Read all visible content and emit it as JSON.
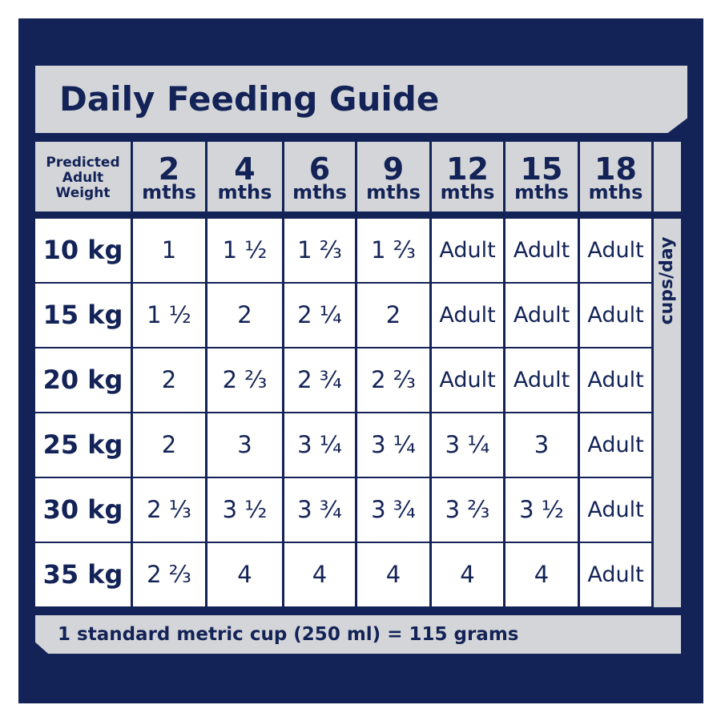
{
  "title": "Daily Feeding Guide",
  "header": {
    "predicted": [
      "Predicted",
      "Adult",
      "Weight"
    ],
    "ages": [
      {
        "num": "2",
        "unit": "mths"
      },
      {
        "num": "4",
        "unit": "mths"
      },
      {
        "num": "6",
        "unit": "mths"
      },
      {
        "num": "9",
        "unit": "mths"
      },
      {
        "num": "12",
        "unit": "mths"
      },
      {
        "num": "15",
        "unit": "mths"
      },
      {
        "num": "18",
        "unit": "mths"
      }
    ]
  },
  "rows": [
    {
      "weight": "10 kg",
      "values": [
        "1",
        "1 ½",
        "1 ⅔",
        "1 ⅔",
        "Adult",
        "Adult",
        "Adult"
      ]
    },
    {
      "weight": "15 kg",
      "values": [
        "1 ½",
        "2",
        "2 ¼",
        "2",
        "Adult",
        "Adult",
        "Adult"
      ]
    },
    {
      "weight": "20 kg",
      "values": [
        "2",
        "2 ⅔",
        "2 ¾",
        "2 ⅔",
        "Adult",
        "Adult",
        "Adult"
      ]
    },
    {
      "weight": "25 kg",
      "values": [
        "2",
        "3",
        "3 ¼",
        "3 ¼",
        "3 ¼",
        "3",
        "Adult"
      ]
    },
    {
      "weight": "30 kg",
      "values": [
        "2 ⅓",
        "3 ½",
        "3 ¾",
        "3 ¾",
        "3 ⅔",
        "3 ½",
        "Adult"
      ]
    },
    {
      "weight": "35 kg",
      "values": [
        "2 ⅔",
        "4",
        "4",
        "4",
        "4",
        "4",
        "Adult"
      ]
    }
  ],
  "side_label": "cups/day",
  "footer": "1 standard metric cup (250 ml) = 115 grams",
  "colors": {
    "navy": "#132357",
    "grey": "#d4d5d8",
    "white": "#ffffff"
  }
}
